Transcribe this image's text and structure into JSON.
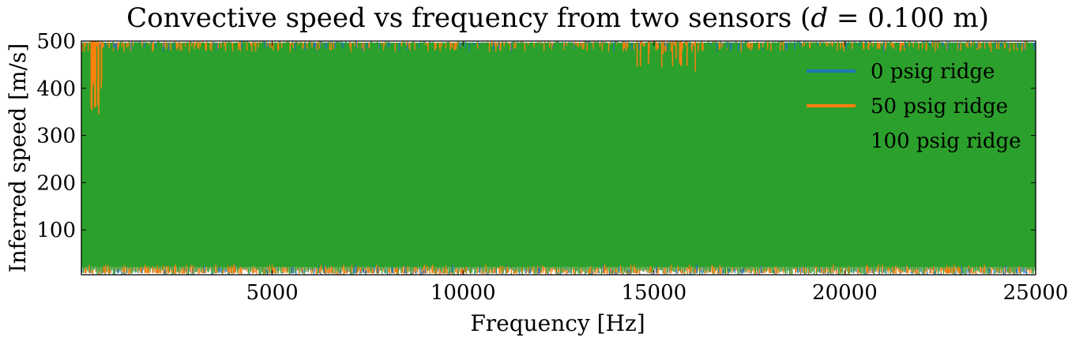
{
  "chart_data": {
    "type": "line",
    "title": "Convective speed vs frequency from two sensors (",
    "title_var": "d",
    "title_rest": " = 0.100 m)",
    "xlabel": "Frequency [Hz]",
    "ylabel": "Inferred speed [m/s]",
    "xlim": [
      0,
      25000
    ],
    "ylim": [
      5,
      500
    ],
    "xticks": [
      5000,
      10000,
      15000,
      20000,
      25000
    ],
    "xtick_labels": [
      "5000",
      "10000",
      "15000",
      "20000",
      "25000"
    ],
    "yticks": [
      100,
      200,
      300,
      400,
      500
    ],
    "ytick_labels": [
      "100",
      "200",
      "300",
      "400",
      "500"
    ],
    "grid": false,
    "legend_position": "top-right",
    "series": [
      {
        "name": "0 psig ridge",
        "color": "#1f77b4",
        "description_values": "noisy ridge oscillating between ~5 and 500 m/s across all frequencies",
        "x": [
          0,
          25000
        ],
        "y_range": [
          5,
          500
        ]
      },
      {
        "name": "50 psig ridge",
        "color": "#ff7f0e",
        "x": [
          0,
          25000
        ],
        "y_range": [
          5,
          500
        ],
        "visible_peaks": [
          {
            "x": 400,
            "y_low": 345
          },
          {
            "x": 15300,
            "y_low": 430
          }
        ]
      },
      {
        "name": "100 psig ridge",
        "color": "#2ca02c",
        "x": [
          0,
          25000
        ],
        "y_range": [
          5,
          500
        ]
      }
    ]
  }
}
